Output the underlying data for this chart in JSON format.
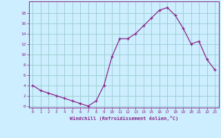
{
  "x": [
    0,
    1,
    2,
    3,
    4,
    5,
    6,
    7,
    8,
    9,
    10,
    11,
    12,
    13,
    14,
    15,
    16,
    17,
    18,
    19,
    20,
    21,
    22,
    23
  ],
  "y": [
    4,
    3,
    2.5,
    2,
    1.5,
    1,
    0.5,
    0,
    1,
    4,
    9.5,
    13,
    13,
    14,
    15.5,
    17,
    18.5,
    19,
    17.5,
    15,
    12,
    12.5,
    9,
    7
  ],
  "line_color": "#882288",
  "marker": "+",
  "marker_color": "#882288",
  "bg_color": "#cceeff",
  "grid_color": "#99cccc",
  "xlabel": "Windchill (Refroidissement éolien,°C)",
  "xlabel_color": "#882288",
  "xtick_labels": [
    "0",
    "1",
    "2",
    "3",
    "4",
    "5",
    "6",
    "7",
    "8",
    "9",
    "10",
    "11",
    "12",
    "13",
    "14",
    "15",
    "16",
    "17",
    "18",
    "19",
    "20",
    "21",
    "22",
    "23"
  ],
  "ytick_values": [
    0,
    2,
    4,
    6,
    8,
    10,
    12,
    14,
    16,
    18
  ],
  "ytick_labels": [
    "0",
    "2",
    "4",
    "6",
    "8",
    "10",
    "12",
    "14",
    "16",
    "18"
  ],
  "ylim": [
    -0.3,
    20.2
  ],
  "xlim": [
    -0.5,
    23.5
  ],
  "tick_color": "#882288",
  "spine_color": "#882288"
}
